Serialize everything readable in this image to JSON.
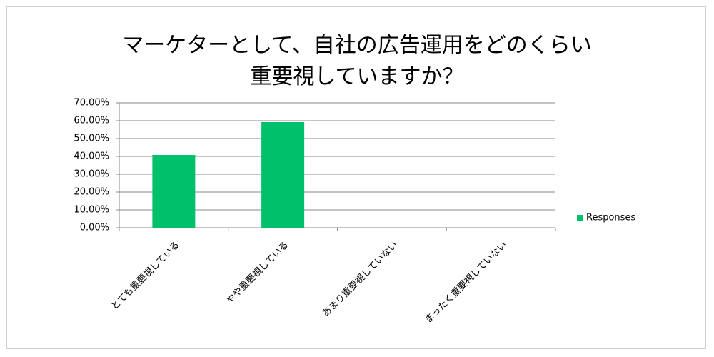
{
  "chart_data": {
    "type": "bar",
    "title": "マーケターとして、自社の広告運用をどのくらい重要視していますか？",
    "categories": [
      "とても重要視している",
      "やや重要視している",
      "あまり重要視していない",
      "まったく重要視していない"
    ],
    "series": [
      {
        "name": "Responses",
        "color": "#00c06b",
        "values": [
          40.8,
          59.2,
          0,
          0
        ]
      }
    ],
    "ylim": [
      0,
      70
    ],
    "yticks": [
      {
        "value": 0,
        "label": "0.00%"
      },
      {
        "value": 10,
        "label": "10.00%"
      },
      {
        "value": 20,
        "label": "20.00%"
      },
      {
        "value": 30,
        "label": "30.00%"
      },
      {
        "value": 40,
        "label": "40.00%"
      },
      {
        "value": 50,
        "label": "50.00%"
      },
      {
        "value": 60,
        "label": "60.00%"
      },
      {
        "value": 70,
        "label": "70.00%"
      }
    ],
    "grid": true,
    "legend": "right"
  }
}
